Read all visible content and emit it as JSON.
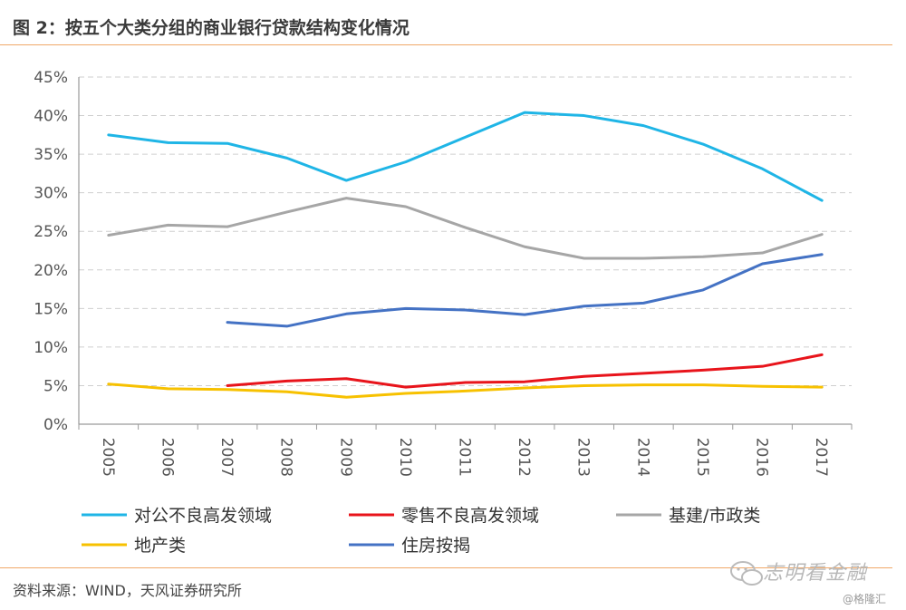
{
  "figure": {
    "title": "图 2：按五个大类分组的商业银行贷款结构变化情况",
    "source": "资料来源：WIND，天风证券研究所",
    "watermark": "志明看金融",
    "credit": "@格隆汇"
  },
  "chart_data": {
    "type": "line",
    "title": "",
    "xlabel": "",
    "ylabel": "",
    "x": [
      "2005",
      "2006",
      "2007",
      "2008",
      "2009",
      "2010",
      "2011",
      "2012",
      "2013",
      "2014",
      "2015",
      "2016",
      "2017"
    ],
    "ylim": [
      0,
      45
    ],
    "yticks": [
      "0%",
      "5%",
      "10%",
      "15%",
      "20%",
      "25%",
      "30%",
      "35%",
      "40%",
      "45%"
    ],
    "grid": "horizontal dashed",
    "legend_position": "bottom",
    "series": [
      {
        "name": "对公不良高发领域",
        "color": "#1fb5e6",
        "values": [
          37.5,
          36.5,
          36.4,
          34.5,
          31.6,
          34.0,
          37.2,
          40.4,
          40.0,
          38.7,
          36.3,
          33.1,
          29.0
        ]
      },
      {
        "name": "零售不良高发领域",
        "color": "#e8141b",
        "values": [
          null,
          null,
          5.0,
          5.6,
          5.9,
          4.8,
          5.4,
          5.5,
          6.2,
          6.6,
          7.0,
          7.5,
          9.0
        ]
      },
      {
        "name": "基建/市政类",
        "color": "#a6a6a6",
        "values": [
          24.5,
          25.8,
          25.6,
          27.5,
          29.3,
          28.2,
          25.5,
          23.0,
          21.5,
          21.5,
          21.7,
          22.2,
          24.6
        ]
      },
      {
        "name": "地产类",
        "color": "#f7c100",
        "values": [
          5.2,
          4.6,
          4.5,
          4.2,
          3.5,
          4.0,
          4.3,
          4.7,
          5.0,
          5.1,
          5.1,
          4.9,
          4.8
        ]
      },
      {
        "name": "住房按揭",
        "color": "#4472c4",
        "values": [
          null,
          null,
          13.2,
          12.7,
          14.3,
          15.0,
          14.8,
          14.2,
          15.3,
          15.7,
          17.4,
          20.8,
          22.0
        ]
      }
    ]
  }
}
